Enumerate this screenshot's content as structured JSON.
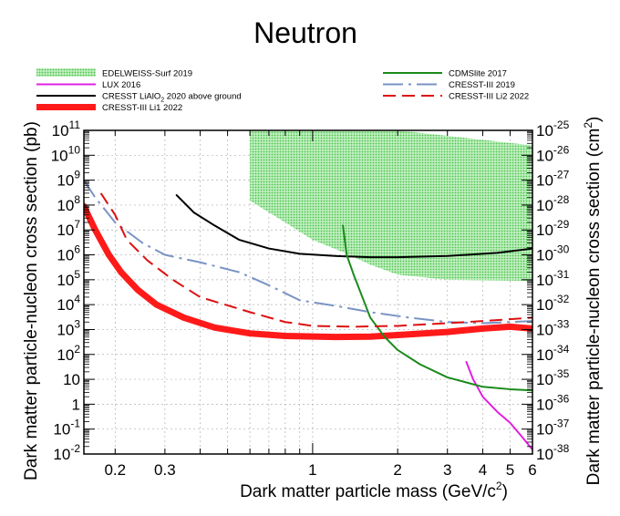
{
  "chart_data": {
    "type": "line",
    "title": "Neutron",
    "xlabel": "Dark matter particle mass (GeV/c",
    "xlabel_sup": "2",
    "xlabel_end": ")",
    "ylabel_left": "Dark matter particle-nucleon cross section (pb)",
    "ylabel_right": "Dark matter particle-nucleon cross section (cm",
    "ylabel_right_sup": "2",
    "ylabel_right_end": ")",
    "xscale": "log",
    "yscale": "log",
    "xlim": [
      0.155,
      6.0
    ],
    "ylim_left": [
      0.01,
      100000000000.0
    ],
    "ylim_right": [
      1e-38,
      1e-25
    ],
    "grid": true,
    "x_ticks": [
      {
        "v": 0.2,
        "label": "0.2"
      },
      {
        "v": 0.3,
        "label": "0.3"
      },
      {
        "v": 1,
        "label": "1"
      },
      {
        "v": 2,
        "label": "2"
      },
      {
        "v": 3,
        "label": "3"
      },
      {
        "v": 4,
        "label": "4"
      },
      {
        "v": 5,
        "label": "5"
      },
      {
        "v": 6,
        "label": "6"
      }
    ],
    "y_left_ticks": [
      {
        "v": 100000000000.0,
        "base": "10",
        "exp": "11"
      },
      {
        "v": 10000000000.0,
        "base": "10",
        "exp": "10"
      },
      {
        "v": 1000000000.0,
        "base": "10",
        "exp": "9"
      },
      {
        "v": 100000000.0,
        "base": "10",
        "exp": "8"
      },
      {
        "v": 10000000.0,
        "base": "10",
        "exp": "7"
      },
      {
        "v": 1000000.0,
        "base": "10",
        "exp": "6"
      },
      {
        "v": 100000.0,
        "base": "10",
        "exp": "5"
      },
      {
        "v": 10000.0,
        "base": "10",
        "exp": "4"
      },
      {
        "v": 1000.0,
        "base": "10",
        "exp": "3"
      },
      {
        "v": 100.0,
        "base": "10",
        "exp": "2"
      },
      {
        "v": 10,
        "base": "10",
        "exp": ""
      },
      {
        "v": 1,
        "base": "1",
        "exp": ""
      },
      {
        "v": 0.1,
        "base": "10",
        "exp": "-1"
      },
      {
        "v": 0.01,
        "base": "10",
        "exp": "-2"
      }
    ],
    "y_right_ticks": [
      {
        "v": 1e-25,
        "base": "10",
        "exp": "-25"
      },
      {
        "v": 1e-26,
        "base": "10",
        "exp": "-26"
      },
      {
        "v": 1e-27,
        "base": "10",
        "exp": "-27"
      },
      {
        "v": 1e-28,
        "base": "10",
        "exp": "-28"
      },
      {
        "v": 1e-29,
        "base": "10",
        "exp": "-29"
      },
      {
        "v": 1e-30,
        "base": "10",
        "exp": "-30"
      },
      {
        "v": 1e-31,
        "base": "10",
        "exp": "-31"
      },
      {
        "v": 1e-32,
        "base": "10",
        "exp": "-32"
      },
      {
        "v": 1e-33,
        "base": "10",
        "exp": "-33"
      },
      {
        "v": 1e-34,
        "base": "10",
        "exp": "-34"
      },
      {
        "v": 1e-35,
        "base": "10",
        "exp": "-35"
      },
      {
        "v": 1e-36,
        "base": "10",
        "exp": "-36"
      },
      {
        "v": 1e-37,
        "base": "10",
        "exp": "-37"
      },
      {
        "v": 1e-38,
        "base": "10",
        "exp": "-38"
      }
    ],
    "band": {
      "name": "EDELWEISS-Surf 2019",
      "color": "#7fd77f",
      "upper": [
        [
          0.6,
          100000000000.0
        ],
        [
          6.0,
          100000000000.0
        ]
      ],
      "lower": [
        [
          0.6,
          150000000.0
        ],
        [
          0.8,
          20000000.0
        ],
        [
          1.0,
          4000000.0
        ],
        [
          1.3,
          1200000.0
        ],
        [
          1.6,
          400000.0
        ],
        [
          2.0,
          160000.0
        ],
        [
          3.0,
          100000.0
        ],
        [
          6.0,
          90000.0
        ]
      ],
      "top_edge": [
        [
          0.6,
          100000000000.0
        ],
        [
          2.0,
          100000000000.0
        ],
        [
          3.0,
          60000000000.0
        ],
        [
          6.0,
          25000000000.0
        ]
      ]
    },
    "series": [
      {
        "name": "LUX 2016",
        "color": "#e020e0",
        "dash": "solid",
        "width": 2,
        "points": [
          [
            3.5,
            50
          ],
          [
            3.7,
            10
          ],
          [
            4.0,
            2
          ],
          [
            4.5,
            0.5
          ],
          [
            5.0,
            0.18
          ],
          [
            5.5,
            0.05
          ],
          [
            6.0,
            0.015
          ]
        ]
      },
      {
        "name": "CRESST LiAlO",
        "name_sub": "2",
        "name_end": " 2020 above ground",
        "color": "#000000",
        "dash": "solid",
        "width": 2,
        "points": [
          [
            0.33,
            250000000.0
          ],
          [
            0.38,
            50000000.0
          ],
          [
            0.45,
            15000000.0
          ],
          [
            0.55,
            4000000.0
          ],
          [
            0.7,
            1800000.0
          ],
          [
            0.9,
            1100000.0
          ],
          [
            1.2,
            900000.0
          ],
          [
            1.6,
            800000.0
          ],
          [
            2.0,
            800000.0
          ],
          [
            3.0,
            900000.0
          ],
          [
            4.5,
            1200000.0
          ],
          [
            6.0,
            1800000.0
          ]
        ]
      },
      {
        "name": "CRESST-III Li1 2022",
        "color": "#ff1a1a",
        "dash": "solid",
        "width": 7,
        "points": [
          [
            0.155,
            90000000.0
          ],
          [
            0.17,
            10000000.0
          ],
          [
            0.19,
            1000000.0
          ],
          [
            0.21,
            200000.0
          ],
          [
            0.24,
            40000.0
          ],
          [
            0.28,
            10000.0
          ],
          [
            0.35,
            3000.0
          ],
          [
            0.45,
            1200.0
          ],
          [
            0.6,
            700
          ],
          [
            0.8,
            550
          ],
          [
            1.2,
            500
          ],
          [
            1.6,
            520
          ],
          [
            2.0,
            600
          ],
          [
            3.0,
            800
          ],
          [
            4.0,
            1100.0
          ],
          [
            5.0,
            1300.0
          ],
          [
            6.0,
            1100.0
          ]
        ]
      },
      {
        "name": "CDMSlite 2017",
        "color": "#1a8a1a",
        "dash": "solid",
        "width": 2,
        "points": [
          [
            1.28,
            15000000.0
          ],
          [
            1.32,
            1000000.0
          ],
          [
            1.4,
            150000.0
          ],
          [
            1.5,
            20000.0
          ],
          [
            1.6,
            3000.0
          ],
          [
            1.8,
            500
          ],
          [
            2.0,
            150
          ],
          [
            2.4,
            40
          ],
          [
            3.0,
            12
          ],
          [
            4.0,
            5
          ],
          [
            5.0,
            4
          ],
          [
            6.0,
            3.6
          ]
        ]
      },
      {
        "name": "CRESST-III 2019",
        "color": "#7a93c4",
        "dash": "longdashdot",
        "width": 2,
        "points": [
          [
            0.155,
            1000000000.0
          ],
          [
            0.17,
            200000000.0
          ],
          [
            0.2,
            20000000.0
          ],
          [
            0.25,
            3000000.0
          ],
          [
            0.3,
            1000000.0
          ],
          [
            0.4,
            500000.0
          ],
          [
            0.55,
            200000.0
          ],
          [
            0.7,
            60000.0
          ],
          [
            0.9,
            15000.0
          ],
          [
            1.2,
            9000.0
          ],
          [
            1.6,
            5000.0
          ],
          [
            2.2,
            3000.0
          ],
          [
            3.0,
            2000.0
          ],
          [
            4.0,
            1800.0
          ],
          [
            5.0,
            2000.0
          ],
          [
            6.0,
            2200.0
          ]
        ]
      },
      {
        "name": "CRESST-III Li2 2022",
        "color": "#dd1111",
        "dash": "dashed",
        "width": 2,
        "points": [
          [
            0.178,
            300000000.0
          ],
          [
            0.2,
            40000000.0
          ],
          [
            0.22,
            4000000.0
          ],
          [
            0.26,
            600000.0
          ],
          [
            0.32,
            100000.0
          ],
          [
            0.4,
            20000.0
          ],
          [
            0.6,
            5000.0
          ],
          [
            0.8,
            2000.0
          ],
          [
            1.0,
            1400.0
          ],
          [
            1.4,
            1300.0
          ],
          [
            2.0,
            1400.0
          ],
          [
            3.0,
            1800.0
          ],
          [
            4.0,
            2200.0
          ],
          [
            5.0,
            2600.0
          ],
          [
            6.0,
            3000.0
          ]
        ]
      }
    ]
  }
}
